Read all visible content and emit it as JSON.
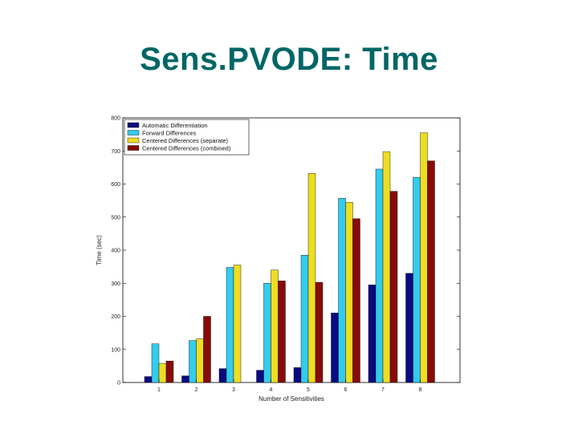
{
  "slide": {
    "title": "Sens.PVODE: Time"
  },
  "chart_data": {
    "type": "bar",
    "title": "",
    "xlabel": "Number of Sensitivities",
    "ylabel": "Time (sec)",
    "categories": [
      "1",
      "2",
      "3",
      "4",
      "5",
      "6",
      "7",
      "8"
    ],
    "ylim": [
      0,
      800
    ],
    "yticks": [
      0,
      100,
      200,
      300,
      400,
      500,
      600,
      700,
      800
    ],
    "grid": false,
    "legend_position": "top-left",
    "series": [
      {
        "name": "Automatic Differentiation",
        "color": "#0a0a80",
        "values": [
          18,
          20,
          42,
          37,
          45,
          210,
          295,
          330
        ]
      },
      {
        "name": "Forward Differences",
        "color": "#33ccee",
        "values": [
          117,
          127,
          348,
          300,
          385,
          557,
          645,
          620
        ]
      },
      {
        "name": "Centered Differences (separate)",
        "color": "#eedd22",
        "values": [
          58,
          132,
          355,
          340,
          632,
          545,
          698,
          755
        ]
      },
      {
        "name": "Centered Differences (combined)",
        "color": "#880a0a",
        "values": [
          65,
          200,
          0,
          307,
          303,
          495,
          578,
          670
        ]
      }
    ]
  }
}
